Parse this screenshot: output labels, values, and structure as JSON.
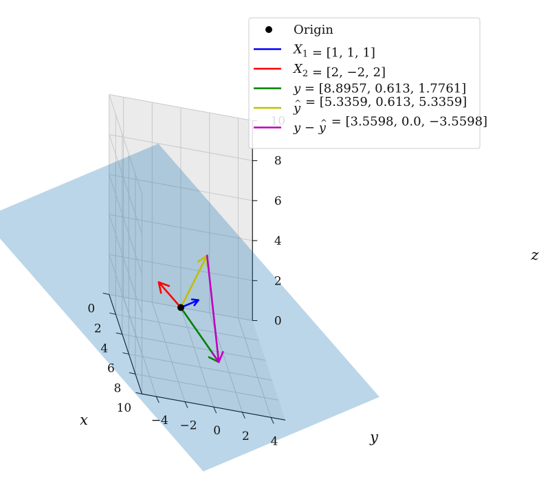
{
  "chart_data": {
    "type": "3d-vector-plot",
    "title": "",
    "xlabel": "x",
    "ylabel": "y",
    "zlabel": "z",
    "xlim": [
      0,
      10
    ],
    "ylim": [
      -5,
      5
    ],
    "zlim": [
      0,
      10
    ],
    "x_ticks": [
      "0",
      "2",
      "4",
      "6",
      "8",
      "10"
    ],
    "y_ticks": [
      "−4",
      "−2",
      "0",
      "2",
      "4"
    ],
    "z_ticks": [
      "0",
      "2",
      "4",
      "6",
      "8",
      "10"
    ],
    "grid": true,
    "legend_position": "top-right",
    "origin": {
      "name": "Origin",
      "point": [
        0,
        0,
        0
      ],
      "color": "#000000"
    },
    "plane": {
      "description": "span of X1 and X2",
      "color": "#1f77b4",
      "alpha": 0.3
    },
    "vectors": [
      {
        "key": "x1",
        "base": "X",
        "sub": "1",
        "hat": false,
        "minus": false,
        "value": "[1, 1, 1]",
        "start": [
          0,
          0,
          0
        ],
        "end": [
          1,
          1,
          1
        ],
        "color": "#0000ff"
      },
      {
        "key": "x2",
        "base": "X",
        "sub": "2",
        "hat": false,
        "minus": false,
        "value": "[2, −2, 2]",
        "start": [
          0,
          0,
          0
        ],
        "end": [
          2,
          -2,
          2
        ],
        "color": "#ff0000"
      },
      {
        "key": "y",
        "base": "y",
        "sub": "",
        "hat": false,
        "minus": false,
        "value": "[8.8957, 0.613, 1.7761]",
        "start": [
          0,
          0,
          0
        ],
        "end": [
          8.8957,
          0.613,
          1.7761
        ],
        "color": "#008000"
      },
      {
        "key": "yhat",
        "base": "y",
        "sub": "",
        "hat": true,
        "minus": false,
        "value": "[5.3359, 0.613, 5.3359]",
        "start": [
          0,
          0,
          0
        ],
        "end": [
          5.3359,
          0.613,
          5.3359
        ],
        "color": "#bfbf00"
      },
      {
        "key": "resid",
        "base": "y",
        "sub": "",
        "hat": false,
        "minus": true,
        "value": "[3.5598, 0.0, −3.5598]",
        "start": [
          5.3359,
          0.613,
          5.3359
        ],
        "end": [
          8.8957,
          0.613,
          1.7761
        ],
        "color": "#bf00bf"
      }
    ]
  }
}
